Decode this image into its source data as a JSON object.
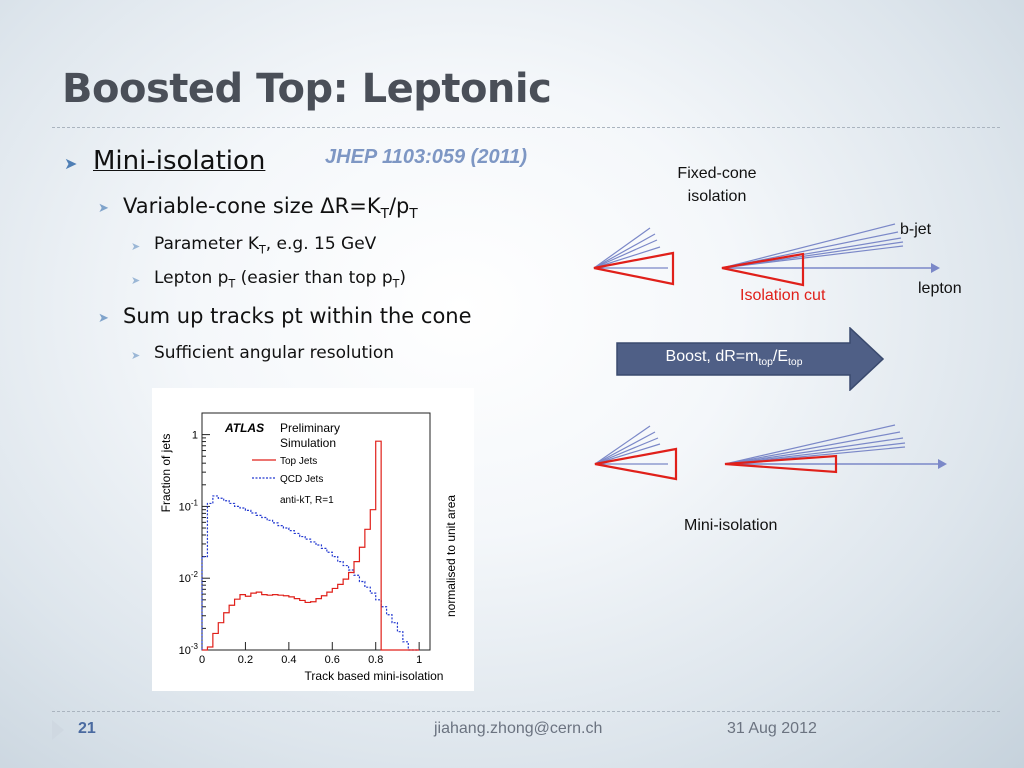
{
  "slide": {
    "title": "Boosted Top: Leptonic",
    "reference": "JHEP 1103:059 (2011)",
    "bullets": {
      "b1": "Mini-isolation",
      "b1_1_prefix": "Variable-cone size ΔR=K",
      "b1_1_sub1": "T",
      "b1_1_mid": "/p",
      "b1_1_sub2": "T",
      "b1_1_a_prefix": "Parameter K",
      "b1_1_a_sub": "T",
      "b1_1_a_suffix": ", e.g. 15 GeV",
      "b1_1_b_prefix": "Lepton p",
      "b1_1_b_sub1": "T",
      "b1_1_b_mid": " (easier than top p",
      "b1_1_b_sub2": "T",
      "b1_1_b_suffix": ")",
      "b2": "Sum up tracks pt within the cone",
      "b2_a": "Sufficient angular resolution"
    }
  },
  "diagram": {
    "fixed_cone_line1": "Fixed-cone",
    "fixed_cone_line2": "isolation",
    "bjet_label": "b-jet",
    "lepton_label": "lepton",
    "isolation_cut_label": "Isolation cut",
    "boost_prefix": "Boost, dR=m",
    "boost_sub1": "top",
    "boost_mid": "/E",
    "boost_sub2": "top",
    "mini_isolation_label": "Mini-isolation"
  },
  "chart_data": {
    "type": "line",
    "title": "",
    "legend_title_bold": "ATLAS",
    "legend_title_line1": "Preliminary",
    "legend_title_line2": "Simulation",
    "legend_note": "anti-kT, R=1",
    "xlabel": "Track based mini-isolation",
    "ylabel": "Fraction of jets",
    "ylabel_right": "normalised to unit area",
    "xlim": [
      0,
      1.05
    ],
    "ylim": [
      0.001,
      2
    ],
    "yscale": "log",
    "x_ticks": [
      "0",
      "0.2",
      "0.4",
      "0.6",
      "0.8",
      "1"
    ],
    "y_ticks": [
      {
        "base": "10",
        "exp": "-3",
        "value": 0.001
      },
      {
        "base": "10",
        "exp": "-2",
        "value": 0.01
      },
      {
        "base": "10",
        "exp": "-1",
        "value": 0.1
      },
      {
        "base": "1",
        "exp": "",
        "value": 1
      }
    ],
    "bin_edges": [
      0,
      0.025,
      0.05,
      0.075,
      0.1,
      0.125,
      0.15,
      0.175,
      0.2,
      0.225,
      0.25,
      0.275,
      0.3,
      0.325,
      0.35,
      0.375,
      0.4,
      0.425,
      0.45,
      0.475,
      0.5,
      0.525,
      0.55,
      0.575,
      0.6,
      0.625,
      0.65,
      0.675,
      0.7,
      0.725,
      0.75,
      0.775,
      0.8,
      0.825,
      0.85,
      0.875,
      0.9,
      0.925,
      0.95,
      0.975,
      1.0
    ],
    "series": [
      {
        "name": "Top Jets",
        "color": "#e0201a",
        "dash": "solid",
        "values": [
          0.001,
          0.0011,
          0.0017,
          0.0024,
          0.0033,
          0.0042,
          0.0051,
          0.0059,
          0.0056,
          0.0062,
          0.0064,
          0.0059,
          0.0058,
          0.0059,
          0.0058,
          0.0057,
          0.0055,
          0.0052,
          0.0049,
          0.0046,
          0.0047,
          0.0052,
          0.0057,
          0.0064,
          0.0072,
          0.0082,
          0.0097,
          0.012,
          0.017,
          0.027,
          0.048,
          0.09,
          0.81,
          0.001,
          0.001,
          0.001,
          0.001,
          0.001,
          0.001,
          0.001
        ]
      },
      {
        "name": "QCD Jets",
        "color": "#2238d0",
        "dash": "dotted",
        "values": [
          0.02,
          0.11,
          0.14,
          0.13,
          0.12,
          0.11,
          0.1,
          0.095,
          0.088,
          0.081,
          0.075,
          0.07,
          0.064,
          0.059,
          0.054,
          0.05,
          0.046,
          0.042,
          0.038,
          0.035,
          0.032,
          0.029,
          0.026,
          0.023,
          0.02,
          0.017,
          0.015,
          0.013,
          0.011,
          0.009,
          0.0075,
          0.0062,
          0.005,
          0.004,
          0.0031,
          0.0024,
          0.0018,
          0.0013,
          0.001,
          0.001
        ]
      }
    ]
  },
  "footer": {
    "page": "21",
    "email": "jiahang.zhong@cern.ch",
    "date": "31 Aug 2012"
  }
}
